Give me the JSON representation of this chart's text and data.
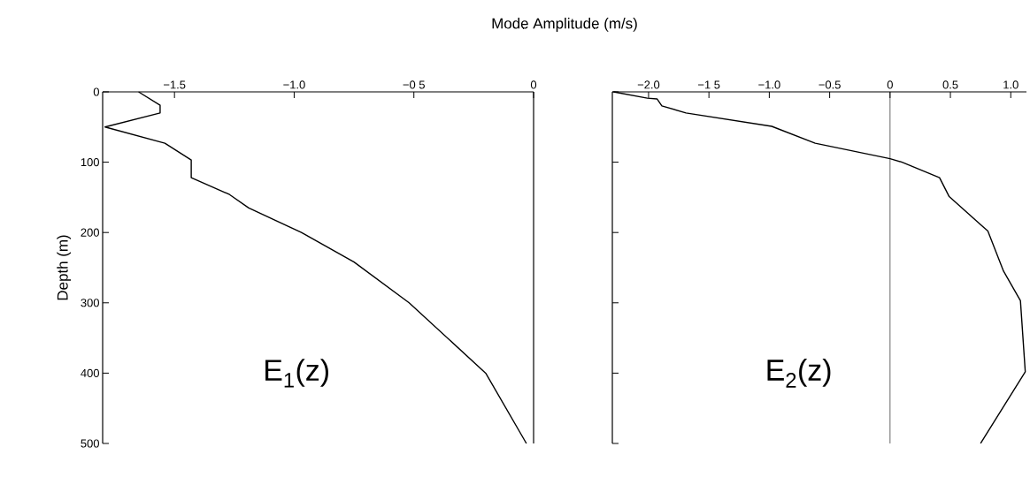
{
  "chart_data": [
    {
      "type": "line",
      "xlabel": "Mode Amplitude (m/s)",
      "ylabel": "Depth (m)",
      "annotations": [
        "E$_{1}$(z)"
      ],
      "x": [
        -1.65,
        -1.56,
        -1.56,
        -1.79,
        -1.54,
        -1.43,
        -1.43,
        -1.27,
        -1.19,
        -0.97,
        -0.75,
        -0.52,
        -0.2,
        -0.03
      ],
      "values": [
        0,
        19,
        30,
        50,
        73,
        97,
        122,
        146,
        165,
        200,
        242,
        300,
        400,
        500
      ],
      "color": "#000000",
      "xlim": [
        -1.8,
        0
      ],
      "ylim": [
        500,
        0
      ],
      "xticks": [
        {
          "value": -1.5,
          "label": "−1.5"
        },
        {
          "value": -1.0,
          "label": "−1.0"
        },
        {
          "value": -0.5,
          "label": "−0 5"
        },
        0
      ],
      "yticks": [
        0,
        100,
        200,
        300,
        400,
        500
      ]
    },
    {
      "type": "line",
      "annotations": [
        "E$_{2}$(z)"
      ],
      "tick_labels": "x",
      "x": [
        -2.29,
        -2.01,
        -1.93,
        -1.89,
        -1.69,
        -0.98,
        -0.62,
        0,
        0.1,
        0.41,
        0.49,
        0.81,
        0.94,
        1.08,
        1.12,
        0.75
      ],
      "values": [
        0,
        9,
        10,
        20,
        30,
        49,
        73,
        95,
        100,
        122,
        149,
        198,
        255,
        297,
        398,
        500
      ],
      "color": "#000000",
      "xlim": [
        -2.3,
        1.13
      ],
      "ylim": [
        500,
        0
      ],
      "xticks": [
        {
          "value": -2.0,
          "label": "−2.0"
        },
        {
          "value": -1.5,
          "label": "−1 5"
        },
        {
          "value": -1.0,
          "label": "−1.0"
        },
        {
          "value": -0.5,
          "label": "−0.5"
        },
        0,
        {
          "value": 0.5,
          "label": "0.5"
        },
        {
          "value": 1.0,
          "label": "1.0"
        }
      ],
      "yticks": [
        {
          "value": 0,
          "label": null
        },
        {
          "value": 100,
          "label": null
        },
        {
          "value": 200,
          "label": null
        },
        {
          "value": 300,
          "label": null
        },
        {
          "value": 400,
          "label": null
        },
        {
          "value": 500,
          "label": null
        }
      ],
      "ref_lines": [
        {
          "axis": "x",
          "value": 0
        }
      ]
    }
  ]
}
